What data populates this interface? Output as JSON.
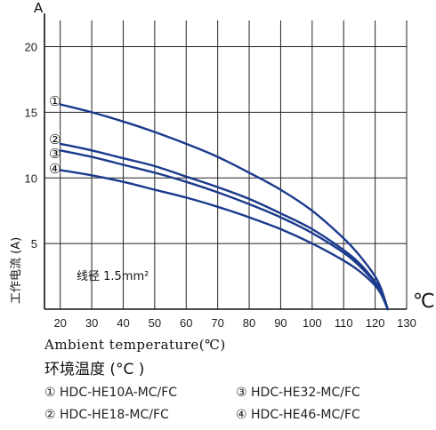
{
  "chart_data": {
    "type": "line",
    "y_unit_label": "A",
    "x_unit_label": "℃",
    "ylabel": "工作电流 (A)",
    "xlabel_en": "Ambient temperature(℃)",
    "xlabel_cn": "环境温度 (°C )",
    "annotation": "线径 1.5mm²",
    "xlim": [
      15,
      130
    ],
    "ylim": [
      0,
      22
    ],
    "x_ticks": [
      20,
      30,
      40,
      50,
      60,
      70,
      80,
      90,
      100,
      110,
      120,
      130
    ],
    "y_ticks": [
      5,
      10,
      15,
      20
    ],
    "grid": true,
    "line_color": "#1b3a8c",
    "series": [
      {
        "name": "HDC-HE10A-MC/FC",
        "marker": "①",
        "x_max": 124,
        "x": [
          20,
          30,
          40,
          50,
          60,
          70,
          80,
          90,
          100,
          110,
          115,
          120,
          122,
          124
        ],
        "y": [
          15.6,
          15.0,
          14.3,
          13.5,
          12.6,
          11.6,
          10.4,
          9.1,
          7.5,
          5.4,
          4.1,
          2.5,
          1.5,
          0
        ]
      },
      {
        "name": "HDC-HE18-MC/FC",
        "marker": "②",
        "x_max": 124,
        "x": [
          20,
          30,
          40,
          50,
          60,
          70,
          80,
          90,
          100,
          110,
          115,
          120,
          122,
          124
        ],
        "y": [
          12.6,
          12.1,
          11.5,
          10.9,
          10.1,
          9.3,
          8.4,
          7.3,
          6.1,
          4.5,
          3.5,
          2.1,
          1.3,
          0
        ]
      },
      {
        "name": "HDC-HE32-MC/FC",
        "marker": "③",
        "x_max": 124,
        "x": [
          20,
          30,
          40,
          50,
          60,
          70,
          80,
          90,
          100,
          110,
          115,
          120,
          122,
          124
        ],
        "y": [
          12.1,
          11.6,
          11.0,
          10.4,
          9.7,
          8.9,
          8.0,
          7.0,
          5.8,
          4.3,
          3.3,
          2.0,
          1.3,
          0
        ]
      },
      {
        "name": "HDC-HE46-MC/FC",
        "marker": "④",
        "x_max": 124,
        "x": [
          20,
          30,
          40,
          50,
          60,
          70,
          80,
          90,
          100,
          110,
          115,
          120,
          122,
          124
        ],
        "y": [
          10.6,
          10.2,
          9.7,
          9.1,
          8.5,
          7.8,
          7.0,
          6.1,
          5.0,
          3.7,
          2.9,
          1.8,
          1.1,
          0
        ]
      }
    ]
  },
  "legend": [
    {
      "marker": "①",
      "name": "HDC-HE10A-MC/FC"
    },
    {
      "marker": "②",
      "name": "HDC-HE18-MC/FC"
    },
    {
      "marker": "③",
      "name": "HDC-HE32-MC/FC"
    },
    {
      "marker": "④",
      "name": "HDC-HE46-MC/FC"
    }
  ]
}
